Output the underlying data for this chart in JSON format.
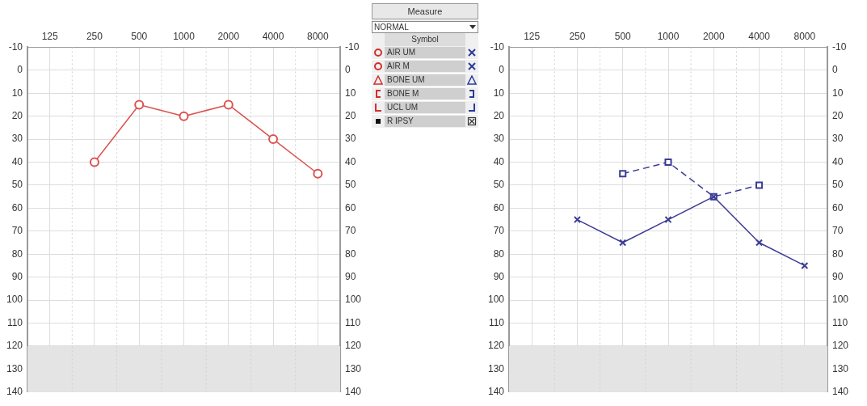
{
  "chart_data": [
    {
      "type": "line",
      "categories": [
        "125",
        "250",
        "500",
        "1000",
        "2000",
        "4000",
        "8000"
      ],
      "series": [
        {
          "color": "#d9534f",
          "marker": "circle",
          "values": [
            null,
            40,
            15,
            20,
            15,
            30,
            45
          ]
        }
      ],
      "ylim": [
        140,
        -10
      ],
      "yticks": [
        -10,
        0,
        10,
        20,
        30,
        40,
        50,
        60,
        70,
        80,
        90,
        100,
        110,
        120,
        130,
        140
      ],
      "y2lim": [
        140,
        -10
      ],
      "y2ticks": [
        -10,
        0,
        10,
        20,
        30,
        40,
        50,
        60,
        70,
        80,
        90,
        100,
        110,
        120,
        130,
        140
      ],
      "bands": [
        {
          "axis": "y",
          "from": 120,
          "to": 140,
          "color": "#e4e4e4"
        }
      ],
      "grid": true
    },
    {
      "type": "other",
      "title": "Measure",
      "subtitle": "NORMAL",
      "legend_title": "Symbol",
      "annotations": [
        "AIR UM",
        "AIR M",
        "BONE UM",
        "BONE M",
        "UCL UM",
        "R IPSY"
      ]
    },
    {
      "type": "line",
      "categories": [
        "125",
        "250",
        "500",
        "1000",
        "2000",
        "4000",
        "8000"
      ],
      "series": [
        {
          "color": "#3c3c96",
          "marker": "cross",
          "values": [
            null,
            65,
            75,
            65,
            55,
            75,
            85
          ]
        },
        {
          "color": "#3c3c96",
          "marker": "square",
          "line_style": "dashed",
          "values": [
            null,
            null,
            45,
            40,
            55,
            50,
            null
          ]
        }
      ],
      "ylim": [
        140,
        -10
      ],
      "yticks": [
        -10,
        0,
        10,
        20,
        30,
        40,
        50,
        60,
        70,
        80,
        90,
        100,
        110,
        120,
        130,
        140
      ],
      "y2lim": [
        140,
        -10
      ],
      "y2ticks": [
        -10,
        0,
        10,
        20,
        30,
        40,
        50,
        60,
        70,
        80,
        90,
        100,
        110,
        120,
        130,
        140
      ],
      "bands": [
        {
          "axis": "y",
          "from": 120,
          "to": 140,
          "color": "#e4e4e4"
        }
      ],
      "grid": true
    }
  ]
}
